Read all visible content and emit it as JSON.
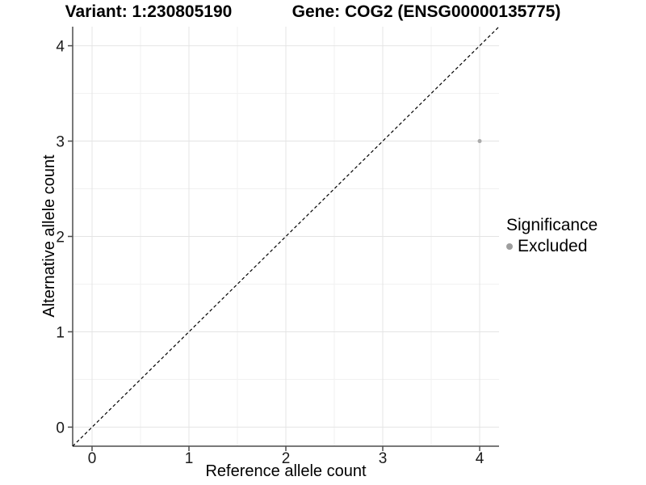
{
  "header": {
    "variant_title": "Variant: 1:230805190",
    "gene_title": "Gene: COG2 (ENSG00000135775)"
  },
  "chart_data": {
    "type": "scatter",
    "title": "Variant: 1:230805190 | Gene: COG2 (ENSG00000135775)",
    "xlabel": "Reference allele count",
    "ylabel": "Alternative allele count",
    "xlim": [
      -0.2,
      4.2
    ],
    "ylim": [
      -0.2,
      4.2
    ],
    "x_ticks": [
      0,
      1,
      2,
      3,
      4
    ],
    "y_ticks": [
      0,
      1,
      2,
      3,
      4
    ],
    "x_minor": [
      0.5,
      1.5,
      2.5,
      3.5
    ],
    "y_minor": [
      0.5,
      1.5,
      2.5,
      3.5
    ],
    "grid": true,
    "reference_line": {
      "kind": "identity",
      "style": "dashed",
      "from": -0.2,
      "to": 4.2
    },
    "series": [
      {
        "name": "Excluded",
        "color": "#ababab",
        "points": [
          {
            "x": 4,
            "y": 3
          }
        ]
      }
    ],
    "legend": {
      "title": "Significance",
      "position": "right",
      "entries": [
        {
          "label": "Excluded",
          "color": "#9e9e9e"
        }
      ]
    }
  },
  "palette": {
    "background": "#ffffff",
    "grid_major": "#e4e4e4",
    "grid_minor": "#f1f1f1",
    "axis_line": "#4d4d4d",
    "tick_label": "#1a1a1a",
    "dashed_line": "#000000",
    "point": "#ababab"
  }
}
